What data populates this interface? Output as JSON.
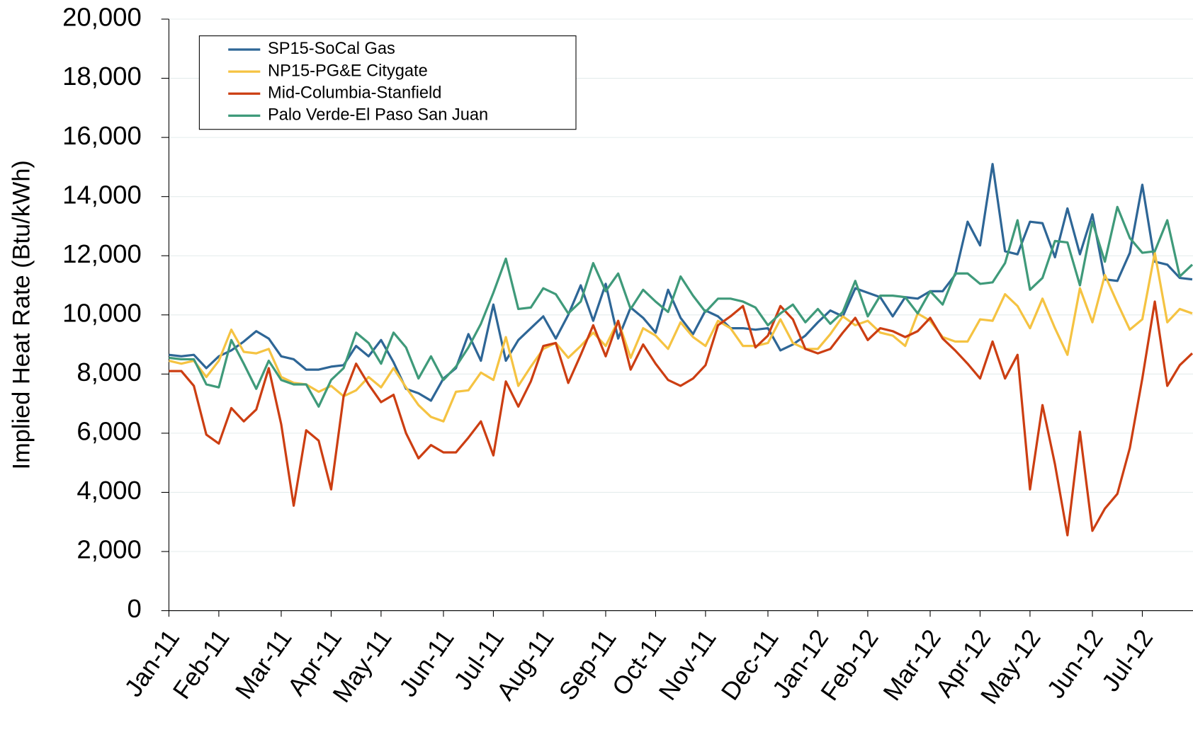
{
  "chart_data": {
    "type": "line",
    "y_label": "Implied Heat Rate (Btu/kWh)",
    "categories": [
      "Jan-11",
      null,
      null,
      null,
      "Feb-11",
      null,
      null,
      null,
      null,
      "Mar-11",
      null,
      null,
      null,
      "Apr-11",
      null,
      null,
      null,
      "May-11",
      null,
      null,
      null,
      null,
      "Jun-11",
      null,
      null,
      null,
      "Jul-11",
      null,
      null,
      null,
      "Aug-11",
      null,
      null,
      null,
      null,
      "Sep-11",
      null,
      null,
      null,
      "Oct-11",
      null,
      null,
      null,
      "Nov-11",
      null,
      null,
      null,
      null,
      "Dec-11",
      null,
      null,
      null,
      "Jan-12",
      null,
      null,
      null,
      "Feb-12",
      null,
      null,
      null,
      null,
      "Mar-12",
      null,
      null,
      null,
      "Apr-12",
      null,
      null,
      null,
      "May-12",
      null,
      null,
      null,
      null,
      "Jun-12",
      null,
      null,
      null,
      "Jul-12",
      null,
      null,
      null,
      null
    ],
    "series": [
      {
        "name": "SP15-SoCal Gas",
        "color": "#2e6696",
        "values": [
          8650,
          8600,
          8650,
          8200,
          8600,
          8800,
          9100,
          9450,
          9200,
          8600,
          8500,
          8150,
          8150,
          8250,
          8300,
          8950,
          8600,
          9150,
          8400,
          7500,
          7350,
          7100,
          7850,
          8200,
          9350,
          8450,
          10350,
          8450,
          9150,
          9550,
          9950,
          9200,
          10000,
          11000,
          9800,
          11050,
          9200,
          10250,
          9900,
          9400,
          10850,
          9900,
          9350,
          10150,
          9950,
          9550,
          9550,
          9500,
          9550,
          8800,
          9000,
          9300,
          9750,
          10150,
          9950,
          10900,
          10750,
          10600,
          9950,
          10600,
          10550,
          10800,
          10800,
          11350,
          13150,
          12350,
          15100,
          12150,
          12050,
          13150,
          13100,
          11950,
          13600,
          12050,
          13400,
          11200,
          11150,
          12100,
          14400,
          11800,
          11700,
          11250,
          11200
        ]
      },
      {
        "name": "NP15-PG&E Citygate",
        "color": "#f5c342",
        "values": [
          8450,
          8350,
          8450,
          7900,
          8450,
          9500,
          8750,
          8700,
          8850,
          7900,
          7700,
          7650,
          7400,
          7600,
          7250,
          7450,
          7900,
          7550,
          8200,
          7550,
          6950,
          6550,
          6400,
          7400,
          7450,
          8050,
          7800,
          9250,
          7600,
          8250,
          8850,
          9050,
          8550,
          8950,
          9400,
          8950,
          9800,
          8550,
          9550,
          9300,
          8850,
          9750,
          9250,
          8950,
          9800,
          9550,
          8950,
          8950,
          9050,
          9850,
          9050,
          8850,
          8850,
          9350,
          9950,
          9650,
          9800,
          9400,
          9300,
          8950,
          10050,
          9800,
          9250,
          9100,
          9100,
          9850,
          9800,
          10700,
          10300,
          9550,
          10550,
          9550,
          8650,
          10900,
          9750,
          11350,
          10400,
          9500,
          9850,
          12100,
          9750,
          10200,
          10050
        ]
      },
      {
        "name": "Mid-Columbia-Stanfield",
        "color": "#cc3e12",
        "values": [
          8100,
          8100,
          7600,
          5950,
          5650,
          6850,
          6400,
          6800,
          8200,
          6300,
          3550,
          6100,
          5750,
          4100,
          7250,
          8350,
          7650,
          7050,
          7300,
          6000,
          5150,
          5600,
          5350,
          5350,
          5850,
          6400,
          5250,
          7750,
          6900,
          7750,
          8950,
          9050,
          7700,
          8650,
          9650,
          8600,
          9800,
          8150,
          9000,
          8350,
          7800,
          7600,
          7850,
          8300,
          9650,
          9950,
          10300,
          8900,
          9300,
          10300,
          9850,
          8850,
          8700,
          8850,
          9400,
          9900,
          9150,
          9550,
          9450,
          9250,
          9450,
          9900,
          9200,
          8800,
          8350,
          7850,
          9100,
          7850,
          8650,
          4100,
          6950,
          4950,
          2550,
          6050,
          2700,
          3450,
          3950,
          5500,
          7850,
          10450,
          7600,
          8300,
          8700
        ]
      },
      {
        "name": "Palo Verde-El Paso San Juan",
        "color": "#3f9a7a",
        "values": [
          8550,
          8500,
          8500,
          7650,
          7550,
          9150,
          8350,
          7500,
          8450,
          7800,
          7650,
          7650,
          6900,
          7800,
          8200,
          9400,
          9050,
          8350,
          9400,
          8900,
          7850,
          8600,
          7800,
          8250,
          8900,
          9700,
          10750,
          11900,
          10200,
          10250,
          10900,
          10700,
          10050,
          10450,
          11750,
          10800,
          11400,
          10200,
          10850,
          10450,
          10100,
          11300,
          10650,
          10100,
          10550,
          10550,
          10450,
          10250,
          9650,
          10050,
          10350,
          9750,
          10200,
          9700,
          10100,
          11150,
          9950,
          10650,
          10650,
          10600,
          10050,
          10800,
          10350,
          11400,
          11400,
          11050,
          11100,
          11750,
          13200,
          10850,
          11250,
          12500,
          12450,
          11000,
          13150,
          11800,
          13650,
          12600,
          12100,
          12150,
          13200,
          11300,
          11700
        ]
      }
    ],
    "ylim": [
      0,
      20000
    ],
    "yticks": [
      0,
      {
        "value": 2000,
        "label": "2,000"
      },
      {
        "value": 4000,
        "label": "4,000"
      },
      {
        "value": 6000,
        "label": "6,000"
      },
      {
        "value": 8000,
        "label": "8,000"
      },
      {
        "value": 10000,
        "label": "10,000"
      },
      {
        "value": 12000,
        "label": "12,000"
      },
      {
        "value": 14000,
        "label": "14,000"
      },
      {
        "value": 16000,
        "label": "16,000"
      },
      {
        "value": 18000,
        "label": "18,000"
      },
      {
        "value": 20000,
        "label": "20,000"
      }
    ],
    "grid": true,
    "legend": "top-left"
  }
}
